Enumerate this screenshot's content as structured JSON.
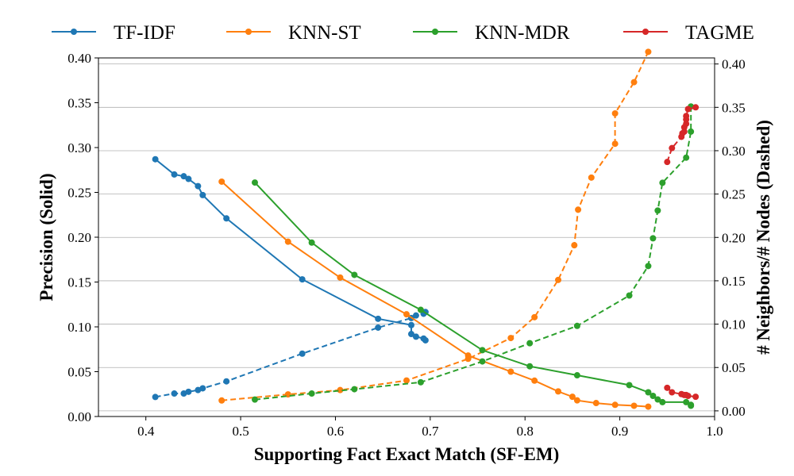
{
  "chart_data": {
    "type": "line",
    "xlabel": "Supporting Fact Exact Match (SF-EM)",
    "ylabel_left": "Precision (Solid)",
    "ylabel_right": "# Neighbors/# Nodes (Dashed)",
    "xlim": [
      0.35,
      1.0
    ],
    "ylim_left": [
      0.0,
      0.4
    ],
    "ylim_right": [
      -0.0065,
      0.407
    ],
    "xticks": [
      0.4,
      0.5,
      0.6,
      0.7,
      0.8,
      0.9,
      1.0
    ],
    "xtick_labels": [
      "0.4",
      "0.5",
      "0.6",
      "0.7",
      "0.8",
      "0.9",
      "1.0"
    ],
    "yticks_left": [
      0.0,
      0.05,
      0.1,
      0.15,
      0.2,
      0.25,
      0.3,
      0.35,
      0.4
    ],
    "ytick_labels_left": [
      "0.00",
      "0.05",
      "0.10",
      "0.15",
      "0.20",
      "0.25",
      "0.30",
      "0.35",
      "0.40"
    ],
    "yticks_right": [
      0.0,
      0.05,
      0.1,
      0.15,
      0.2,
      0.25,
      0.3,
      0.35,
      0.4
    ],
    "ytick_labels_right": [
      "0.00",
      "0.05",
      "0.10",
      "0.15",
      "0.20",
      "0.25",
      "0.30",
      "0.35",
      "0.40"
    ],
    "grid": "horizontal, right axis",
    "legend_position": "top",
    "series": [
      {
        "name": "TF-IDF",
        "color": "#1f77b4",
        "solid": {
          "x": [
            0.41,
            0.43,
            0.44,
            0.445,
            0.455,
            0.46,
            0.485,
            0.565,
            0.645,
            0.68,
            0.68,
            0.685,
            0.693,
            0.695
          ],
          "y": [
            0.287,
            0.27,
            0.268,
            0.265,
            0.257,
            0.247,
            0.221,
            0.153,
            0.109,
            0.102,
            0.092,
            0.089,
            0.087,
            0.085
          ]
        },
        "dashed": {
          "x": [
            0.41,
            0.43,
            0.44,
            0.445,
            0.455,
            0.46,
            0.485,
            0.565,
            0.645,
            0.68,
            0.685,
            0.693,
            0.695
          ],
          "y": [
            0.016,
            0.02,
            0.02,
            0.022,
            0.024,
            0.026,
            0.034,
            0.066,
            0.096,
            0.107,
            0.11,
            0.112,
            0.114
          ]
        }
      },
      {
        "name": "KNN-ST",
        "color": "#ff7f0e",
        "solid": {
          "x": [
            0.48,
            0.55,
            0.605,
            0.675,
            0.74,
            0.785,
            0.81,
            0.835,
            0.85,
            0.855,
            0.875,
            0.895,
            0.915,
            0.93
          ],
          "y": [
            0.262,
            0.195,
            0.155,
            0.114,
            0.068,
            0.05,
            0.04,
            0.028,
            0.022,
            0.018,
            0.015,
            0.013,
            0.012,
            0.011
          ]
        },
        "dashed": {
          "x": [
            0.48,
            0.55,
            0.605,
            0.675,
            0.74,
            0.785,
            0.81,
            0.835,
            0.852,
            0.856,
            0.87,
            0.895,
            0.895,
            0.915,
            0.93
          ],
          "y": [
            0.012,
            0.019,
            0.024,
            0.035,
            0.06,
            0.084,
            0.108,
            0.151,
            0.191,
            0.232,
            0.269,
            0.308,
            0.343,
            0.379,
            0.414
          ]
        }
      },
      {
        "name": "KNN-MDR",
        "color": "#2ca02c",
        "solid": {
          "x": [
            0.515,
            0.575,
            0.62,
            0.69,
            0.755,
            0.805,
            0.855,
            0.91,
            0.93,
            0.935,
            0.94,
            0.945,
            0.97,
            0.975,
            0.975
          ],
          "y": [
            0.261,
            0.194,
            0.158,
            0.119,
            0.074,
            0.056,
            0.046,
            0.035,
            0.027,
            0.023,
            0.019,
            0.016,
            0.016,
            0.013,
            0.012
          ]
        },
        "dashed": {
          "x": [
            0.515,
            0.575,
            0.62,
            0.69,
            0.755,
            0.805,
            0.855,
            0.91,
            0.93,
            0.935,
            0.94,
            0.945,
            0.97,
            0.975,
            0.975
          ],
          "y": [
            0.013,
            0.02,
            0.025,
            0.033,
            0.057,
            0.078,
            0.098,
            0.133,
            0.167,
            0.199,
            0.231,
            0.263,
            0.292,
            0.322,
            0.351
          ]
        }
      },
      {
        "name": "TAGME",
        "color": "#d62728",
        "solid": {
          "x": [
            0.95,
            0.955,
            0.965,
            0.968,
            0.97,
            0.972,
            0.98
          ],
          "y": [
            0.032,
            0.027,
            0.025,
            0.024,
            0.024,
            0.023,
            0.022
          ]
        },
        "dashed": {
          "x": [
            0.95,
            0.955,
            0.965,
            0.966,
            0.968,
            0.968,
            0.97,
            0.97,
            0.97,
            0.972,
            0.98
          ],
          "y": [
            0.287,
            0.303,
            0.316,
            0.32,
            0.322,
            0.327,
            0.331,
            0.336,
            0.34,
            0.348,
            0.35
          ]
        }
      }
    ]
  }
}
